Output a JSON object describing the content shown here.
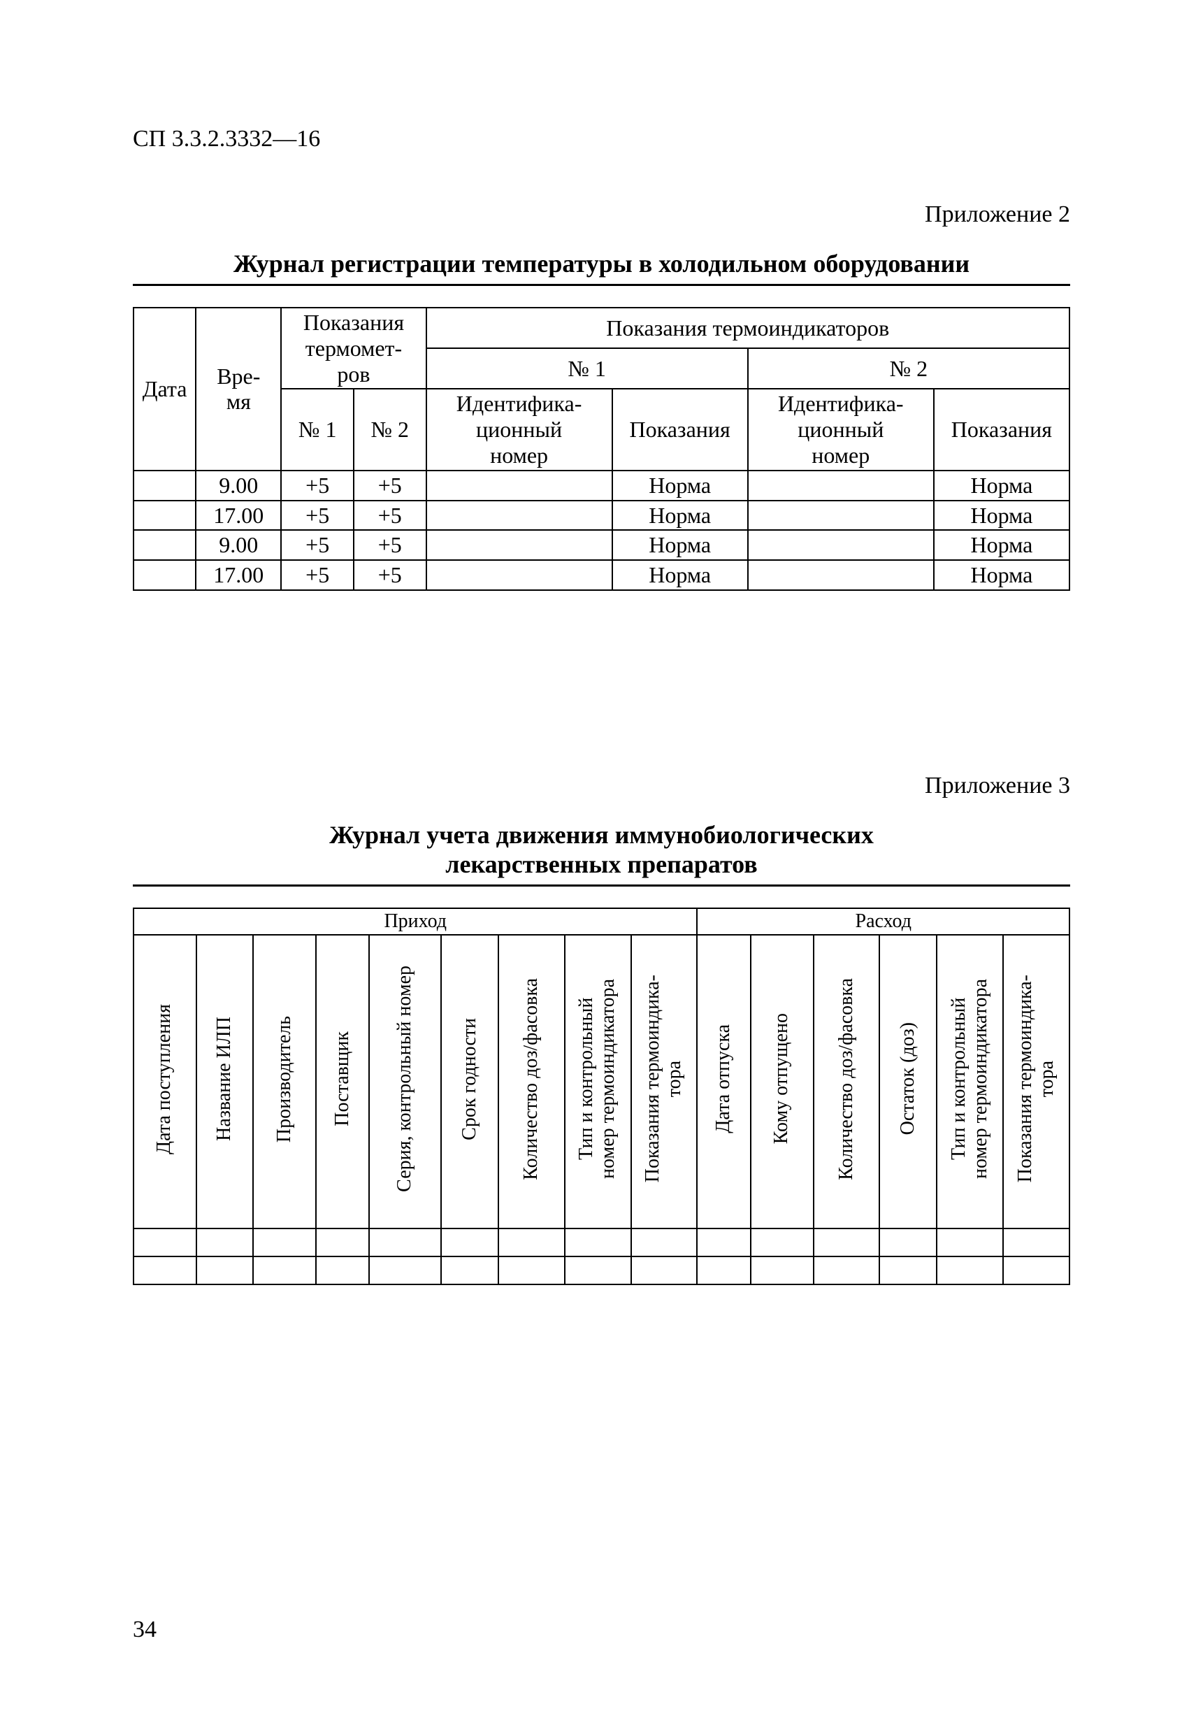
{
  "doc_code": "СП 3.3.2.3332—16",
  "page_number": "34",
  "appendix2": {
    "label": "Приложение 2",
    "title": "Журнал регистрации температуры в холодильном оборудовании",
    "headers": {
      "date": "Дата",
      "time": "Вре-\nмя",
      "thermo_group": "Показания термомет-\nров",
      "indic_group": "Показания термоиндикаторов",
      "n1": "№ 1",
      "n2": "№ 2",
      "id_num": "Идентифика-\nционный\nномер",
      "reading": "Показания"
    },
    "rows": [
      {
        "date": "",
        "time": "9.00",
        "t1": "+5",
        "t2": "+5",
        "id1": "",
        "r1": "Норма",
        "id2": "",
        "r2": "Норма"
      },
      {
        "date": "",
        "time": "17.00",
        "t1": "+5",
        "t2": "+5",
        "id1": "",
        "r1": "Норма",
        "id2": "",
        "r2": "Норма"
      },
      {
        "date": "",
        "time": "9.00",
        "t1": "+5",
        "t2": "+5",
        "id1": "",
        "r1": "Норма",
        "id2": "",
        "r2": "Норма"
      },
      {
        "date": "",
        "time": "17.00",
        "t1": "+5",
        "t2": "+5",
        "id1": "",
        "r1": "Норма",
        "id2": "",
        "r2": "Норма"
      }
    ]
  },
  "appendix3": {
    "label": "Приложение 3",
    "title_l1": "Журнал учета движения иммунобиологических",
    "title_l2": "лекарственных препаратов",
    "group_in": "Приход",
    "group_out": "Расход",
    "cols": [
      "Дата поступления",
      "Название ИЛП",
      "Производитель",
      "Поставщик",
      "Серия, контрольный номер",
      "Срок годности",
      "Количество доз/фасовка",
      "Тип и контрольный\nномер термоиндикатора",
      "Показания термоиндика-\nтора",
      "Дата отпуска",
      "Кому отпущено",
      "Количество доз/фасовка",
      "Остаток (доз)",
      "Тип и контрольный\nномер термоиндикатора",
      "Показания термоиндика-\nтора"
    ]
  }
}
